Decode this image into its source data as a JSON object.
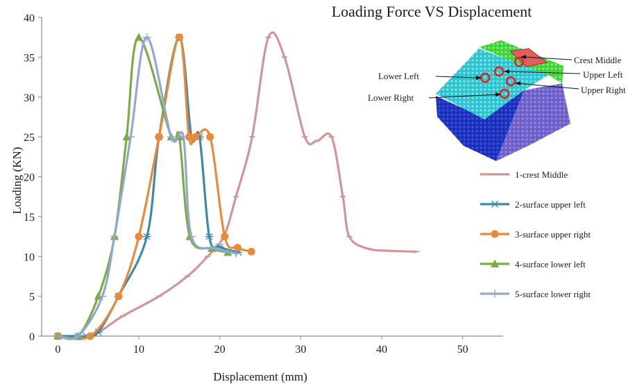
{
  "chart_data": {
    "type": "line",
    "title": "Loading Force VS Displacement",
    "xlabel": "Displacement (mm)",
    "ylabel": "Loading (KN)",
    "xlim": [
      -2,
      55
    ],
    "ylim": [
      0,
      40
    ],
    "xticks": [
      "0",
      "10",
      "20",
      "30",
      "40",
      "50"
    ],
    "xtick_values": [
      0,
      10,
      20,
      30,
      40,
      50
    ],
    "yticks": [
      "0",
      "5",
      "10",
      "15",
      "20",
      "25",
      "30",
      "35",
      "40"
    ],
    "ytick_values": [
      0,
      5,
      10,
      15,
      20,
      25,
      30,
      35,
      40
    ],
    "grid": false,
    "legend_position": "right",
    "series": [
      {
        "name": "1-crest Middle",
        "color": "#d09596",
        "marker": "dash",
        "points": [
          [
            0,
            0
          ],
          [
            4,
            0
          ],
          [
            8,
            2.5
          ],
          [
            12.5,
            5
          ],
          [
            16,
            7.5
          ],
          [
            18.5,
            10
          ],
          [
            20.5,
            12.5
          ],
          [
            22,
            17.5
          ],
          [
            24,
            25
          ],
          [
            26,
            37.5
          ],
          [
            28,
            35
          ],
          [
            30.5,
            25
          ],
          [
            32,
            24.5
          ],
          [
            33.8,
            25
          ],
          [
            35.2,
            17.5
          ],
          [
            36,
            12.5
          ],
          [
            38.2,
            11
          ],
          [
            41,
            10.7
          ],
          [
            44.3,
            10.6
          ]
        ]
      },
      {
        "name": "2-surface upper left",
        "color": "#3a8baa",
        "marker": "star",
        "points": [
          [
            0,
            0
          ],
          [
            2.5,
            0
          ],
          [
            3.5,
            0
          ],
          [
            5,
            0.5
          ],
          [
            7.5,
            5
          ],
          [
            11,
            12.5
          ],
          [
            12.5,
            25
          ],
          [
            15,
            37.5
          ],
          [
            16.5,
            25
          ],
          [
            17.5,
            25
          ],
          [
            18.7,
            12.5
          ],
          [
            20,
            11.2
          ],
          [
            22.3,
            10.5
          ]
        ]
      },
      {
        "name": "3-surface upper right",
        "color": "#e8893c",
        "marker": "circle",
        "points": [
          [
            0,
            0
          ],
          [
            4,
            0
          ],
          [
            7.5,
            5
          ],
          [
            10,
            12.5
          ],
          [
            12.5,
            25
          ],
          [
            15,
            37.5
          ],
          [
            16.2,
            25
          ],
          [
            17,
            25
          ],
          [
            18.8,
            25
          ],
          [
            20.6,
            12.5
          ],
          [
            22.2,
            11.1
          ],
          [
            23.9,
            10.6
          ]
        ]
      },
      {
        "name": "4-surface lower left",
        "color": "#7cab43",
        "marker": "triangle",
        "points": [
          [
            0,
            0
          ],
          [
            2.5,
            0
          ],
          [
            5,
            5
          ],
          [
            7,
            12.5
          ],
          [
            8.5,
            25
          ],
          [
            10,
            37.5
          ],
          [
            14,
            25
          ],
          [
            15,
            25
          ],
          [
            16.3,
            12.5
          ],
          [
            19,
            11
          ],
          [
            21,
            10.5
          ]
        ]
      },
      {
        "name": "5-surface lower right",
        "color": "#91a8d4",
        "marker": "plus",
        "points": [
          [
            0,
            0
          ],
          [
            2.5,
            0
          ],
          [
            5.5,
            5
          ],
          [
            7,
            12.5
          ],
          [
            9,
            25
          ],
          [
            11,
            37.5
          ],
          [
            14,
            25
          ],
          [
            15.5,
            25
          ],
          [
            16.5,
            12.5
          ],
          [
            19.5,
            11
          ],
          [
            22,
            10.4
          ]
        ]
      }
    ],
    "inset": {
      "annotations": [
        "Crest Middle",
        "Upper Left",
        "Upper Right",
        "Lower Left",
        "Lower Right"
      ]
    }
  }
}
